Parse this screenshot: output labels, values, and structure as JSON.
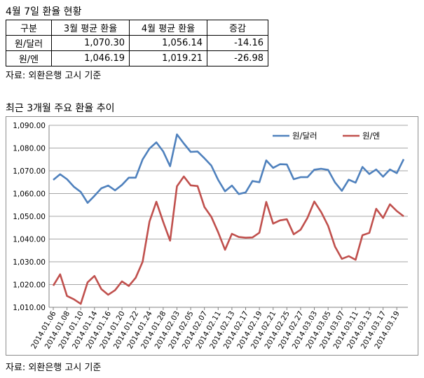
{
  "header_title": "4월 7일 환율 현황",
  "table": {
    "headers": [
      "구분",
      "3월 평균 환율",
      "4월 평균 환율",
      "증감"
    ],
    "rows": [
      [
        "원/달러",
        "1,070.30",
        "1,056.14",
        "-14.16"
      ],
      [
        "원/엔",
        "1,046.19",
        "1,019.21",
        "-26.98"
      ]
    ]
  },
  "source_top": "자료: 외환은행 고시 기준",
  "chart_title": "최근 3개월 주요 환율 추이",
  "source_bottom": "자료: 외환은행 고시 기준",
  "chart_data": {
    "type": "line",
    "title": "최근 3개월 주요 환율 추이",
    "xlabel": "",
    "ylabel": "",
    "ylim": [
      1010,
      1090
    ],
    "yticks": [
      1010,
      1020,
      1030,
      1040,
      1050,
      1060,
      1070,
      1080,
      1090
    ],
    "ytick_labels": [
      "1,010.00",
      "1,020.00",
      "1,030.00",
      "1,040.00",
      "1,050.00",
      "1,060.00",
      "1,070.00",
      "1,080.00",
      "1,090.00"
    ],
    "x_tick_labels": [
      "2014.01.06",
      "2014.01.08",
      "2014.01.10",
      "2014.01.14",
      "2014.01.16",
      "2014.01.20",
      "2014.01.22",
      "2014.01.24",
      "2014.01.28",
      "2014.02.03",
      "2014.02.05",
      "2014.02.07",
      "2014.02.11",
      "2014.02.13",
      "2014.02.17",
      "2014.02.19",
      "2014.02.21",
      "2014.02.25",
      "2014.02.27",
      "2014.03.03",
      "2014.03.05",
      "2014.03.07",
      "2014.03.11",
      "2014.03.13",
      "2014.03.17",
      "2014.03.19"
    ],
    "grid": true,
    "legend_position": "top-right",
    "series": [
      {
        "name": "원/달러",
        "color": "#4f81bd",
        "values": [
          1066.0,
          1068.5,
          1066.3,
          1063.0,
          1060.7,
          1055.9,
          1059.0,
          1062.3,
          1063.5,
          1061.4,
          1063.8,
          1067.0,
          1067.0,
          1075.0,
          1079.8,
          1082.5,
          1078.5,
          1072.0,
          1086.0,
          1082.0,
          1078.3,
          1078.5,
          1075.5,
          1072.3,
          1066.0,
          1061.0,
          1063.5,
          1059.8,
          1060.5,
          1065.5,
          1065.0,
          1074.6,
          1071.3,
          1072.9,
          1072.8,
          1066.3,
          1067.2,
          1067.2,
          1070.5,
          1070.9,
          1070.4,
          1064.9,
          1061.2,
          1066.1,
          1064.8,
          1071.7,
          1068.6,
          1070.6,
          1067.4,
          1070.6,
          1069.0,
          1075.1
        ]
      },
      {
        "name": "원/엔",
        "color": "#c0504d",
        "values": [
          1019.5,
          1024.5,
          1015.0,
          1013.5,
          1011.5,
          1021.0,
          1023.8,
          1018.0,
          1015.5,
          1017.5,
          1021.4,
          1019.4,
          1023.0,
          1030.0,
          1047.7,
          1056.4,
          1047.5,
          1039.3,
          1063.2,
          1067.5,
          1063.6,
          1063.3,
          1054.1,
          1049.8,
          1043.0,
          1035.3,
          1042.3,
          1040.9,
          1040.6,
          1040.7,
          1042.8,
          1056.3,
          1046.8,
          1048.2,
          1048.7,
          1042.1,
          1044.1,
          1049.3,
          1056.5,
          1051.8,
          1045.8,
          1036.7,
          1031.3,
          1032.5,
          1030.9,
          1041.7,
          1042.7,
          1053.3,
          1049.3,
          1055.3,
          1052.3,
          1050.0
        ]
      }
    ]
  }
}
